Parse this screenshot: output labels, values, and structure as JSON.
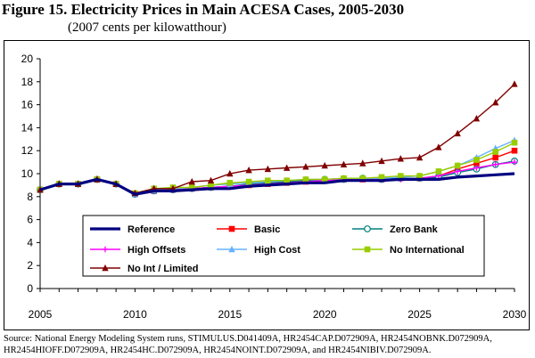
{
  "figure": {
    "title": "Figure 15.  Electricity Prices in Main ACESA Cases, 2005-2030",
    "subtitle": "(2007 cents per kilowatthour)",
    "source": "Source:  National Energy Modeling System runs, STIMULUS.D041409A, HR2454CAP.D072909A, HR2454NOBNK.D072909A, HR2454HIOFF.D072909A, HR2454HC.D072909A, HR2454NOINT.D072909A, and HR2454NIBIV.D072909A."
  },
  "chart_data": {
    "type": "line",
    "title": "Electricity Prices in Main ACESA Cases, 2005-2030",
    "ylabel": "2007 cents per kilowatthour",
    "xlabel": "",
    "xlim": [
      2005,
      2030
    ],
    "ylim": [
      0,
      20
    ],
    "x_ticks": [
      2005,
      2010,
      2015,
      2020,
      2025,
      2030
    ],
    "y_ticks": [
      0,
      2,
      4,
      6,
      8,
      10,
      12,
      14,
      16,
      18,
      20
    ],
    "grid": false,
    "legend_position": "bottom-inside",
    "x": [
      2005,
      2006,
      2007,
      2008,
      2009,
      2010,
      2011,
      2012,
      2013,
      2014,
      2015,
      2016,
      2017,
      2018,
      2019,
      2020,
      2021,
      2022,
      2023,
      2024,
      2025,
      2026,
      2027,
      2028,
      2029,
      2030
    ],
    "series": [
      {
        "name": "Reference",
        "color": "#000080",
        "marker": "none",
        "values": [
          8.6,
          9.1,
          9.1,
          9.5,
          9.1,
          8.2,
          8.5,
          8.5,
          8.6,
          8.7,
          8.7,
          8.9,
          9.0,
          9.1,
          9.2,
          9.2,
          9.4,
          9.4,
          9.4,
          9.5,
          9.5,
          9.5,
          9.7,
          9.8,
          9.9,
          10.0
        ]
      },
      {
        "name": "Basic",
        "color": "#ff0000",
        "marker": "square",
        "values": [
          8.6,
          9.1,
          9.1,
          9.5,
          9.1,
          8.2,
          8.5,
          8.6,
          8.7,
          8.8,
          8.9,
          9.0,
          9.1,
          9.2,
          9.3,
          9.4,
          9.5,
          9.5,
          9.5,
          9.6,
          9.6,
          9.8,
          10.4,
          10.9,
          11.4,
          12.0
        ]
      },
      {
        "name": "Zero Bank",
        "color": "#008080",
        "marker": "circle",
        "values": [
          8.6,
          9.1,
          9.1,
          9.5,
          9.1,
          8.2,
          8.5,
          8.6,
          8.7,
          8.8,
          8.9,
          9.1,
          9.2,
          9.3,
          9.4,
          9.5,
          9.5,
          9.6,
          9.5,
          9.6,
          9.6,
          9.7,
          10.1,
          10.4,
          10.8,
          11.1
        ]
      },
      {
        "name": "High Offsets",
        "color": "#ff00ff",
        "marker": "plus",
        "values": [
          8.6,
          9.1,
          9.1,
          9.5,
          9.1,
          8.2,
          8.5,
          8.6,
          8.7,
          8.8,
          8.9,
          9.0,
          9.1,
          9.2,
          9.3,
          9.4,
          9.5,
          9.5,
          9.5,
          9.5,
          9.6,
          9.8,
          10.2,
          10.5,
          10.8,
          11.0
        ]
      },
      {
        "name": "High Cost",
        "color": "#66b2ff",
        "marker": "triangle",
        "values": [
          8.6,
          9.1,
          9.1,
          9.5,
          9.1,
          8.2,
          8.6,
          8.7,
          8.8,
          9.0,
          9.1,
          9.2,
          9.3,
          9.4,
          9.5,
          9.5,
          9.6,
          9.6,
          9.6,
          9.7,
          9.8,
          10.2,
          10.7,
          11.4,
          12.2,
          12.9
        ]
      },
      {
        "name": "No International",
        "color": "#99cc00",
        "marker": "square",
        "values": [
          8.6,
          9.1,
          9.1,
          9.5,
          9.1,
          8.3,
          8.7,
          8.8,
          8.8,
          9.0,
          9.2,
          9.3,
          9.4,
          9.4,
          9.5,
          9.5,
          9.6,
          9.6,
          9.7,
          9.8,
          9.8,
          10.2,
          10.7,
          11.2,
          11.9,
          12.7
        ]
      },
      {
        "name": "No Int / Limited",
        "color": "#800000",
        "marker": "triangle",
        "values": [
          8.6,
          9.1,
          9.1,
          9.5,
          9.1,
          8.3,
          8.7,
          8.7,
          9.3,
          9.4,
          10.0,
          10.3,
          10.4,
          10.5,
          10.6,
          10.7,
          10.8,
          10.9,
          11.1,
          11.3,
          11.4,
          12.3,
          13.5,
          14.8,
          16.2,
          17.8
        ]
      }
    ]
  }
}
